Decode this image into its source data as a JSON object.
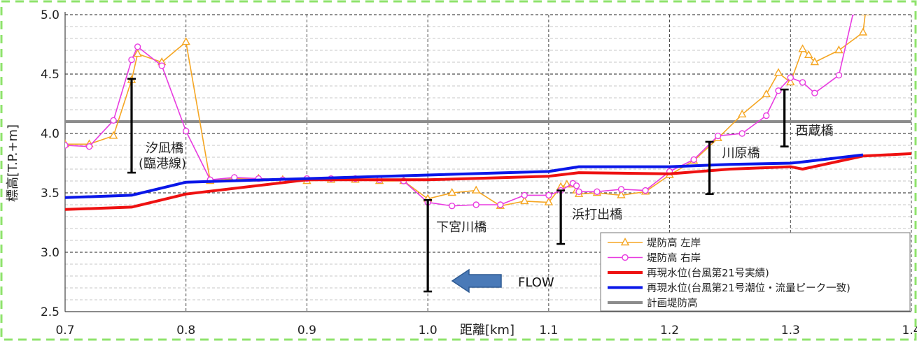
{
  "chart_data": {
    "type": "line",
    "xlabel": "距離[km]",
    "ylabel": "標高[T.P.+m]",
    "xlim": [
      0.7,
      1.4
    ],
    "ylim": [
      2.5,
      5.0
    ],
    "x_ticks": [
      "0.7",
      "0.8",
      "0.9",
      "1.0",
      "1.1",
      "1.2",
      "1.3",
      "1.4"
    ],
    "y_ticks": [
      "2.5",
      "3.0",
      "3.5",
      "4.0",
      "4.5",
      "5.0"
    ],
    "legend_position": "bottom-right",
    "grid": true,
    "series": [
      {
        "name": "堤防高 左岸",
        "color": "#F5A623",
        "marker": "triangle",
        "x": [
          0.7,
          0.72,
          0.74,
          0.755,
          0.76,
          0.78,
          0.8,
          0.82,
          0.84,
          0.86,
          0.88,
          0.9,
          0.92,
          0.94,
          0.96,
          0.98,
          1.0,
          1.02,
          1.04,
          1.06,
          1.08,
          1.1,
          1.11,
          1.115,
          1.12,
          1.123,
          1.125,
          1.14,
          1.16,
          1.18,
          1.2,
          1.22,
          1.24,
          1.26,
          1.28,
          1.29,
          1.3,
          1.31,
          1.315,
          1.32,
          1.34,
          1.36,
          1.362
        ],
        "values": [
          3.91,
          3.91,
          3.98,
          4.45,
          4.67,
          4.6,
          4.77,
          3.6,
          3.62,
          3.62,
          3.61,
          3.6,
          3.61,
          3.61,
          3.6,
          3.6,
          3.45,
          3.5,
          3.52,
          3.39,
          3.43,
          3.42,
          3.55,
          3.57,
          3.57,
          3.52,
          3.49,
          3.5,
          3.48,
          3.51,
          3.65,
          3.77,
          3.96,
          4.16,
          4.33,
          4.51,
          4.43,
          4.71,
          4.66,
          4.6,
          4.7,
          4.85,
          5.02
        ]
      },
      {
        "name": "堤防高 右岸",
        "color": "#E83CE0",
        "marker": "circle",
        "x": [
          0.7,
          0.72,
          0.74,
          0.755,
          0.76,
          0.78,
          0.8,
          0.82,
          0.84,
          0.86,
          0.88,
          0.9,
          0.92,
          0.94,
          0.96,
          0.98,
          1.0,
          1.02,
          1.04,
          1.06,
          1.08,
          1.1,
          1.11,
          1.12,
          1.123,
          1.125,
          1.14,
          1.16,
          1.18,
          1.2,
          1.22,
          1.24,
          1.26,
          1.28,
          1.29,
          1.3,
          1.31,
          1.32,
          1.34,
          1.352
        ],
        "values": [
          3.9,
          3.89,
          4.11,
          4.62,
          4.73,
          4.57,
          4.02,
          3.61,
          3.63,
          3.62,
          3.61,
          3.62,
          3.62,
          3.62,
          3.61,
          3.6,
          3.42,
          3.39,
          3.4,
          3.4,
          3.48,
          3.48,
          3.52,
          3.58,
          3.56,
          3.51,
          3.51,
          3.53,
          3.52,
          3.68,
          3.78,
          3.98,
          4.0,
          4.15,
          4.36,
          4.47,
          4.43,
          4.34,
          4.49,
          5.02
        ]
      },
      {
        "name": "再現水位(台風第21号実績)",
        "color": "#EE1111",
        "marker": "none",
        "x": [
          0.7,
          0.755,
          0.8,
          0.9,
          1.0,
          1.1,
          1.125,
          1.2,
          1.25,
          1.3,
          1.31,
          1.36,
          1.4
        ],
        "values": [
          3.36,
          3.38,
          3.49,
          3.61,
          3.61,
          3.64,
          3.67,
          3.66,
          3.7,
          3.72,
          3.7,
          3.81,
          3.83
        ]
      },
      {
        "name": "再現水位(台風第21号潮位・流量ピーク一致)",
        "color": "#0A17E8",
        "marker": "none",
        "x": [
          0.7,
          0.755,
          0.8,
          0.9,
          1.0,
          1.1,
          1.125,
          1.2,
          1.25,
          1.3,
          1.31,
          1.36
        ],
        "values": [
          3.46,
          3.48,
          3.59,
          3.62,
          3.65,
          3.68,
          3.72,
          3.72,
          3.74,
          3.75,
          3.76,
          3.82
        ]
      },
      {
        "name": "計画堤防高",
        "color": "#8C8C8C",
        "marker": "none",
        "x": [
          0.7,
          1.4
        ],
        "values": [
          4.1,
          4.1
        ]
      }
    ],
    "bridges": [
      {
        "label": "汐凪橋\n(臨港線)",
        "x": 0.755,
        "low": 3.67,
        "high": 4.46
      },
      {
        "label": "下宮川橋",
        "x": 1.0,
        "low": 2.67,
        "high": 3.44
      },
      {
        "label": "浜打出橋",
        "x": 1.11,
        "low": 3.07,
        "high": 3.52
      },
      {
        "label": "川原橋",
        "x": 1.233,
        "low": 3.49,
        "high": 3.93
      },
      {
        "label": "西蔵橋",
        "x": 1.295,
        "low": 3.89,
        "high": 4.37
      }
    ],
    "annotation": {
      "label": "FLOW",
      "arrow": "left"
    }
  },
  "legend_items": [
    "堤防高 左岸",
    "堤防高 右岸",
    "再現水位(台風第21号実績)",
    "再現水位(台風第21号潮位・流量ピーク一致)",
    "計画堤防高"
  ]
}
